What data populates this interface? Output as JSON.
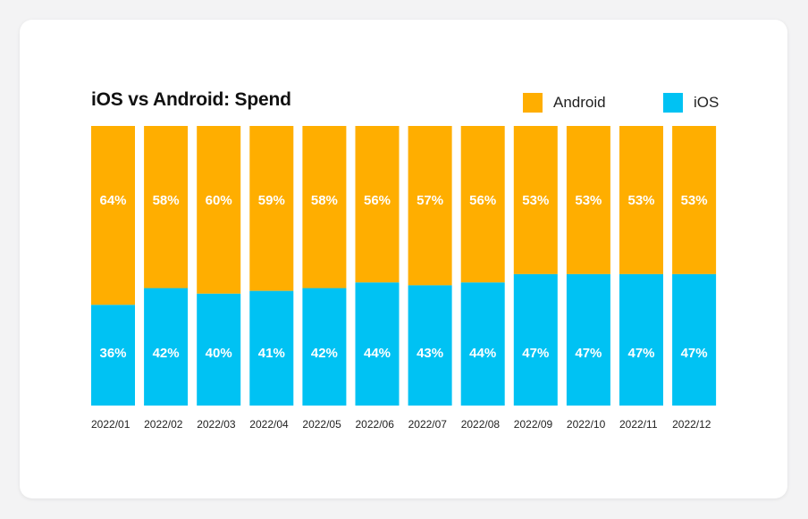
{
  "colors": {
    "android": "#ffae00",
    "ios": "#00c2f3"
  },
  "legend": {
    "android_label": "Android",
    "ios_label": "iOS"
  },
  "chart_data": {
    "type": "bar",
    "stacked": true,
    "title": "iOS vs Android: Spend",
    "xlabel": "",
    "ylabel": "",
    "ylim": [
      0,
      100
    ],
    "legend_position": "top-right",
    "categories": [
      "2022/01",
      "2022/02",
      "2022/03",
      "2022/04",
      "2022/05",
      "2022/06",
      "2022/07",
      "2022/08",
      "2022/09",
      "2022/10",
      "2022/11",
      "2022/12"
    ],
    "series": [
      {
        "name": "iOS",
        "values": [
          36,
          42,
          40,
          41,
          42,
          44,
          43,
          44,
          47,
          47,
          47,
          47
        ],
        "labels": [
          "36%",
          "42%",
          "40%",
          "41%",
          "42%",
          "44%",
          "43%",
          "44%",
          "47%",
          "47%",
          "47%",
          "47%"
        ]
      },
      {
        "name": "Android",
        "values": [
          64,
          58,
          60,
          59,
          58,
          56,
          57,
          56,
          53,
          53,
          53,
          53
        ],
        "labels": [
          "64%",
          "58%",
          "60%",
          "59%",
          "58%",
          "56%",
          "57%",
          "56%",
          "53%",
          "53%",
          "53%",
          "53%"
        ]
      }
    ]
  }
}
